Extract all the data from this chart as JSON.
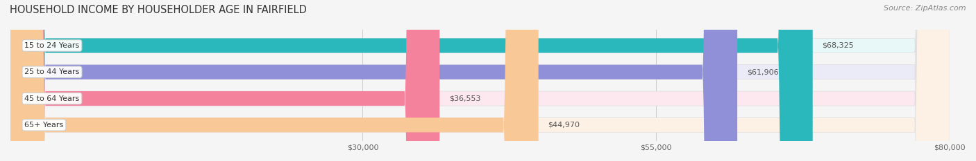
{
  "title": "HOUSEHOLD INCOME BY HOUSEHOLDER AGE IN FAIRFIELD",
  "source": "Source: ZipAtlas.com",
  "categories": [
    "15 to 24 Years",
    "25 to 44 Years",
    "45 to 64 Years",
    "65+ Years"
  ],
  "values": [
    68325,
    61906,
    36553,
    44970
  ],
  "bar_colors": [
    "#2ab8bc",
    "#9090d8",
    "#f4829c",
    "#f8c896"
  ],
  "bar_bg_colors": [
    "#e8f8f8",
    "#ebebf8",
    "#fce8ee",
    "#fdf0e4"
  ],
  "value_labels": [
    "$68,325",
    "$61,906",
    "$36,553",
    "$44,970"
  ],
  "xlim_min": 0,
  "xlim_max": 80000,
  "xticks": [
    30000,
    55000,
    80000
  ],
  "xtick_labels": [
    "$30,000",
    "$55,000",
    "$80,000"
  ],
  "label_bg_color": "#ffffff",
  "label_border_color": "#cccccc",
  "figsize": [
    14.06,
    2.33
  ],
  "dpi": 100
}
